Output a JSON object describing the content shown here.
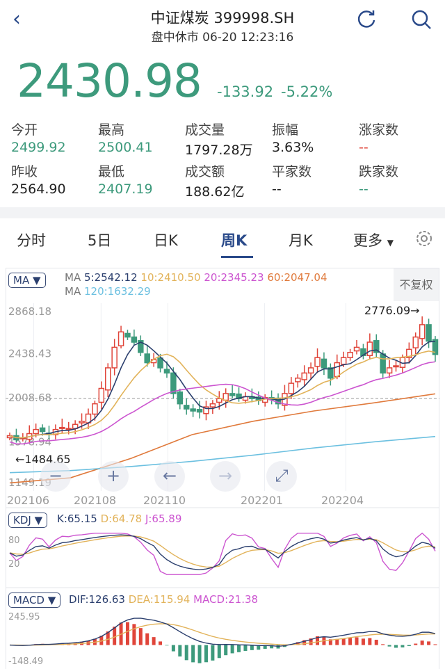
{
  "header": {
    "title": "中证煤炭 399998.SH",
    "subtitle": "盘中休市 06-20 12:23:16"
  },
  "quote": {
    "price": "2430.98",
    "change": "-133.92",
    "change_pct": "-5.22%"
  },
  "stats": [
    {
      "label": "今开",
      "value": "2499.92",
      "color": "green"
    },
    {
      "label": "最高",
      "value": "2500.41",
      "color": "green"
    },
    {
      "label": "成交量",
      "value": "1797.28万",
      "color": "dark"
    },
    {
      "label": "振幅",
      "value": "3.63%",
      "color": "dark"
    },
    {
      "label": "涨家数",
      "value": "--",
      "color": "red"
    },
    {
      "label": "昨收",
      "value": "2564.90",
      "color": "dark"
    },
    {
      "label": "最低",
      "value": "2407.19",
      "color": "green"
    },
    {
      "label": "成交额",
      "value": "188.62亿",
      "color": "dark"
    },
    {
      "label": "平家数",
      "value": "--",
      "color": "dark"
    },
    {
      "label": "跌家数",
      "value": "--",
      "color": "green"
    }
  ],
  "tabs": [
    {
      "label": "分时"
    },
    {
      "label": "5日"
    },
    {
      "label": "日K"
    },
    {
      "label": "周K",
      "active": true
    },
    {
      "label": "月K"
    },
    {
      "label": "更多"
    }
  ],
  "colors": {
    "up": "#e0453a",
    "down": "#3d9a7c",
    "ma5": "#2b3f6e",
    "ma10": "#e2b35a",
    "ma20": "#cc55d0",
    "ma60": "#e07a3c",
    "ma120": "#6cc0e0"
  },
  "ma_panel": {
    "selector": "MA",
    "prefix1": "MA",
    "ma5": "5:2542.12",
    "ma10": "10:2410.50",
    "ma20": "20:2345.23",
    "ma60": "60:2047.04",
    "prefix2": "MA",
    "ma120": "120:1632.29",
    "adjust": "不复权"
  },
  "kdj_panel": {
    "selector": "KDJ",
    "k": "K:65.15",
    "d": "D:64.78",
    "j": "J:65.89",
    "ticks": [
      "80",
      "20"
    ]
  },
  "macd_panel": {
    "selector": "MACD",
    "dif": "DIF:126.63",
    "dea": "DEA:115.94",
    "macd": "MACD:21.38",
    "ticks": [
      "245.95",
      "-148.49"
    ]
  },
  "chart_data": {
    "type": "candlestick",
    "y_ticks": [
      "2868.18",
      "2438.43",
      "2008.68",
      "1578.94",
      "1149.19"
    ],
    "ylim": [
      1149.19,
      2868.18
    ],
    "x_ticks": [
      "202106",
      "202108",
      "202110",
      "202201",
      "202204"
    ],
    "max_label": "2776.09→",
    "min_label": "←1484.65",
    "closes": [
      1640,
      1600,
      1620,
      1660,
      1700,
      1680,
      1650,
      1700,
      1720,
      1710,
      1750,
      1780,
      1850,
      1950,
      2100,
      2300,
      2500,
      2650,
      2600,
      2550,
      2450,
      2350,
      2380,
      2300,
      2250,
      2050,
      1950,
      1900,
      1880,
      1870,
      1920,
      1950,
      2000,
      2050,
      2030,
      2000,
      2020,
      2000,
      1980,
      2010,
      1990,
      1950,
      2050,
      2150,
      2200,
      2250,
      2300,
      2400,
      2300,
      2200,
      2350,
      2400,
      2450,
      2500,
      2420,
      2550,
      2450,
      2250,
      2300,
      2320,
      2400,
      2480,
      2600,
      2720,
      2560,
      2430
    ],
    "ma60": [
      1180,
      1230,
      1420,
      1650,
      1780,
      1880,
      1960,
      2047
    ],
    "ma120": [
      1280,
      1300,
      1340,
      1390,
      1450,
      1520,
      1580,
      1632
    ]
  },
  "controls": [
    "zoom-out",
    "zoom-in",
    "pan-left",
    "pan-right",
    "fullscreen"
  ]
}
